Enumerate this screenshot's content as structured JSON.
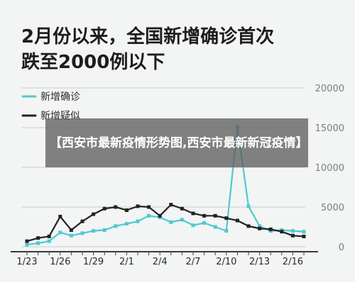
{
  "headline": {
    "line1": "2月份以来，全国新增确诊首次",
    "line2": "跌至2000例以下"
  },
  "overlay_title": "【西安市最新疫情形势图,西安市最新新冠疫情】",
  "colors": {
    "confirmed": "#4ec9cf",
    "suspected": "#222222",
    "grid": "#c9cdd0",
    "axis_text": "#7b7f82"
  },
  "chart_data": {
    "type": "line",
    "x": [
      "1/23",
      "1/24",
      "1/25",
      "1/26",
      "1/27",
      "1/28",
      "1/29",
      "1/30",
      "1/31",
      "2/1",
      "2/2",
      "2/3",
      "2/4",
      "2/5",
      "2/6",
      "2/7",
      "2/8",
      "2/9",
      "2/10",
      "2/11",
      "2/12",
      "2/13",
      "2/14",
      "2/15",
      "2/16",
      "2/17"
    ],
    "x_tick_labels": [
      "1/23",
      "1/26",
      "1/29",
      "2/1",
      "2/4",
      "2/7",
      "2/10",
      "2/13",
      "2/16"
    ],
    "y_ticks": [
      0,
      5000,
      10000,
      15000,
      20000
    ],
    "ylim": [
      0,
      20000
    ],
    "legend_position": "top-left",
    "series": [
      {
        "name": "新增确诊",
        "values": [
          250,
          450,
          700,
          1800,
          1400,
          1700,
          2000,
          2100,
          2600,
          2900,
          3200,
          3900,
          3700,
          3100,
          3400,
          2700,
          3000,
          2500,
          2000,
          15100,
          5100,
          2600,
          2000,
          2100,
          2000,
          1900
        ]
      },
      {
        "name": "新增疑似",
        "values": [
          700,
          1100,
          1300,
          3800,
          2100,
          3200,
          4100,
          4800,
          5000,
          4600,
          5100,
          5000,
          3900,
          5300,
          4800,
          4200,
          3900,
          3900,
          3600,
          3300,
          2600,
          2300,
          2200,
          1900,
          1400,
          1300
        ]
      }
    ]
  }
}
